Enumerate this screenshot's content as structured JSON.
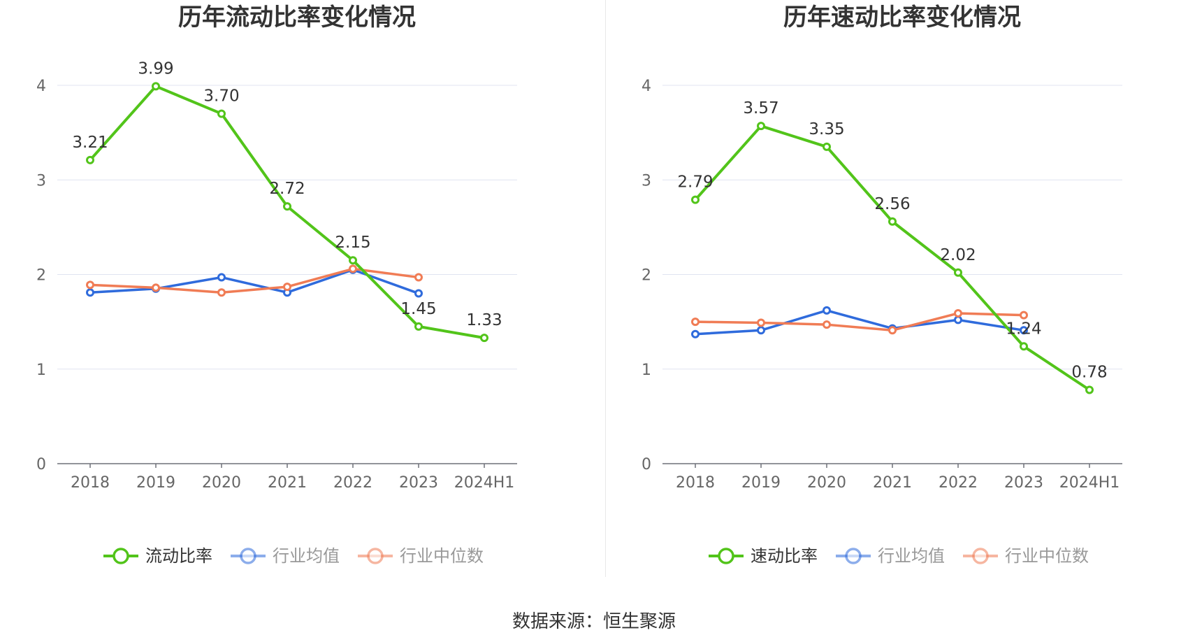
{
  "source": "数据来源：恒生聚源",
  "chart_data": [
    {
      "type": "line",
      "title": "历年流动比率变化情况",
      "categories": [
        "2018",
        "2019",
        "2020",
        "2021",
        "2022",
        "2023",
        "2024H1"
      ],
      "ylim": [
        0,
        4
      ],
      "yticks": [
        "0",
        "1",
        "2",
        "3",
        "4"
      ],
      "grid": true,
      "legend_position": "bottom-center",
      "series": [
        {
          "name": "流动比率",
          "color": "#52c41a",
          "values": [
            3.21,
            3.99,
            3.7,
            2.72,
            2.15,
            1.45,
            1.33
          ],
          "labels": [
            "3.21",
            "3.99",
            "3.70",
            "2.72",
            "2.15",
            "1.45",
            "1.33"
          ]
        },
        {
          "name": "行业均值",
          "color": "#2f6bdc",
          "values": [
            1.81,
            1.85,
            1.97,
            1.81,
            2.05,
            1.8,
            null
          ]
        },
        {
          "name": "行业中位数",
          "color": "#f07c55",
          "values": [
            1.89,
            1.86,
            1.81,
            1.87,
            2.06,
            1.97,
            null
          ]
        }
      ]
    },
    {
      "type": "line",
      "title": "历年速动比率变化情况",
      "categories": [
        "2018",
        "2019",
        "2020",
        "2021",
        "2022",
        "2023",
        "2024H1"
      ],
      "ylim": [
        0,
        4
      ],
      "yticks": [
        "0",
        "1",
        "2",
        "3",
        "4"
      ],
      "grid": true,
      "legend_position": "bottom-center",
      "series": [
        {
          "name": "速动比率",
          "color": "#52c41a",
          "values": [
            2.79,
            3.57,
            3.35,
            2.56,
            2.02,
            1.24,
            0.78
          ],
          "labels": [
            "2.79",
            "3.57",
            "3.35",
            "2.56",
            "2.02",
            "1.24",
            "0.78"
          ]
        },
        {
          "name": "行业均值",
          "color": "#2f6bdc",
          "values": [
            1.37,
            1.41,
            1.62,
            1.43,
            1.52,
            1.41,
            null
          ]
        },
        {
          "name": "行业中位数",
          "color": "#f07c55",
          "values": [
            1.5,
            1.49,
            1.47,
            1.41,
            1.59,
            1.57,
            null
          ]
        }
      ]
    }
  ]
}
